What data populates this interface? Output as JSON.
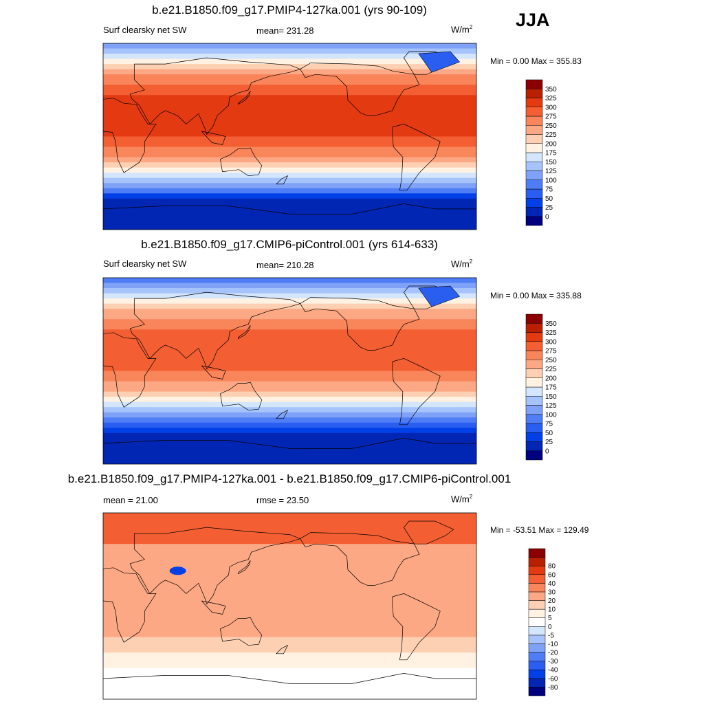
{
  "season": "JJA",
  "colors": {
    "abs_scale": [
      "#00007f",
      "#0026b3",
      "#0040e6",
      "#2a5ef0",
      "#4f7df5",
      "#7fa2f8",
      "#a6c4fb",
      "#d3e6fd",
      "#fff2e2",
      "#fdd0b3",
      "#fca885",
      "#f9855a",
      "#f35f33",
      "#e43a12",
      "#b82000",
      "#8b0000"
    ],
    "diff_scale": [
      "#00007f",
      "#0026b3",
      "#0040e6",
      "#2a5ef0",
      "#4f7df5",
      "#7fa2f8",
      "#a6c4fb",
      "#d3e6fd",
      "#ffffff",
      "#fff2e2",
      "#fdd0b3",
      "#fca885",
      "#f9855a",
      "#f35f33",
      "#e43a12",
      "#b82000",
      "#8b0000"
    ]
  },
  "chart_data": [
    {
      "type": "heatmap",
      "title": "b.e21.B1850.f09_g17.PMIP4-127ka.001 (yrs 90-109)",
      "left_label": "Surf clearsky net SW",
      "center_label": "mean= 231.28",
      "unit": "W/m",
      "unit_sup": "2",
      "minmax": "Min =   0.00 Max = 355.83",
      "levels": [
        "0",
        "25",
        "50",
        "75",
        "100",
        "125",
        "150",
        "175",
        "200",
        "225",
        "250",
        "275",
        "300",
        "325",
        "350"
      ],
      "fields": {
        "base": 312,
        "tropic_peak": 325,
        "south_pole": 12
      }
    },
    {
      "type": "heatmap",
      "title": "b.e21.B1850.f09_g17.CMIP6-piControl.001 (yrs 614-633)",
      "left_label": "Surf clearsky net SW",
      "center_label": "mean= 210.28",
      "unit": "W/m",
      "unit_sup": "2",
      "minmax": "Min =   0.00 Max = 335.88",
      "levels": [
        "0",
        "25",
        "50",
        "75",
        "100",
        "125",
        "150",
        "175",
        "200",
        "225",
        "250",
        "275",
        "300",
        "325",
        "350"
      ],
      "fields": {
        "base": 288,
        "tropic_peak": 300,
        "south_pole": 12
      }
    },
    {
      "type": "heatmap",
      "title": "b.e21.B1850.f09_g17.PMIP4-127ka.001 - b.e21.B1850.f09_g17.CMIP6-piControl.001",
      "left_label": "mean =  21.00",
      "center_label": "rmse =  23.50",
      "unit": "W/m",
      "unit_sup": "2",
      "minmax": "Min = -53.51 Max = 129.49",
      "levels": [
        "-80",
        "-60",
        "-40",
        "-30",
        "-20",
        "-10",
        "-5",
        "0",
        "5",
        "10",
        "20",
        "30",
        "40",
        "60",
        "80"
      ],
      "fields": {
        "base": 24,
        "tropic_peak": 26,
        "south_pole": 4
      }
    }
  ]
}
